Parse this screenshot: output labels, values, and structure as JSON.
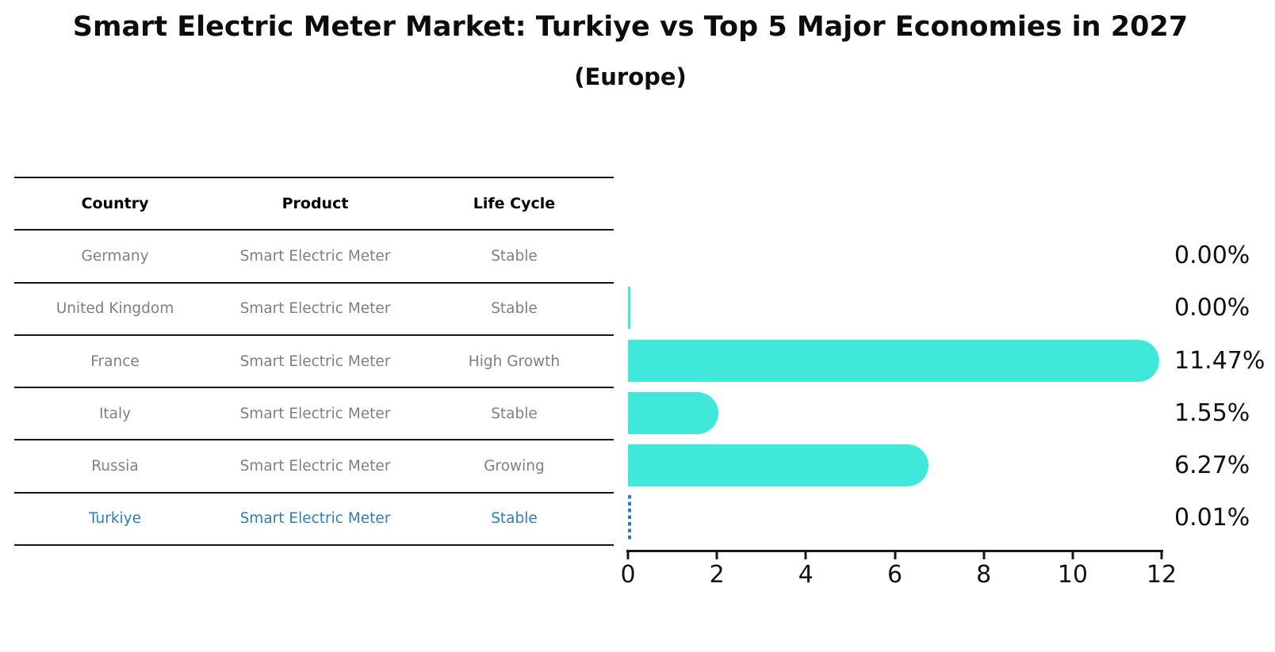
{
  "header": {
    "title": "Smart Electric Meter Market: Turkiye vs Top 5 Major Economies in 2027",
    "subtitle": "(Europe)"
  },
  "table": {
    "headers": [
      "Country",
      "Product",
      "Life Cycle"
    ],
    "rows": [
      {
        "country": "Germany",
        "product": "Smart Electric Meter",
        "life_cycle": "Stable",
        "highlight": false
      },
      {
        "country": "United Kingdom",
        "product": "Smart Electric Meter",
        "life_cycle": "Stable",
        "highlight": false
      },
      {
        "country": "France",
        "product": "Smart Electric Meter",
        "life_cycle": "High Growth",
        "highlight": false
      },
      {
        "country": "Italy",
        "product": "Smart Electric Meter",
        "life_cycle": "Stable",
        "highlight": false
      },
      {
        "country": "Russia",
        "product": "Smart Electric Meter",
        "life_cycle": "Growing",
        "highlight": false
      },
      {
        "country": "Turkiye",
        "product": "Smart Electric Meter",
        "life_cycle": "Stable",
        "highlight": true
      }
    ]
  },
  "chart_data": {
    "type": "bar",
    "orientation": "horizontal",
    "title": "Smart Electric Meter Market: Turkiye vs Top 5 Major Economies in 2027",
    "subtitle": "(Europe)",
    "categories": [
      "Germany",
      "United Kingdom",
      "France",
      "Italy",
      "Russia",
      "Turkiye"
    ],
    "values": [
      0.0,
      0.0,
      11.47,
      1.55,
      6.27,
      0.01
    ],
    "value_labels": [
      "0.00%",
      "0.00%",
      "11.47%",
      "1.55%",
      "6.27%",
      "0.01%"
    ],
    "unit": "%",
    "xlim": [
      0,
      12
    ],
    "xticks": [
      "0",
      "2",
      "4",
      "6",
      "8",
      "10",
      "12"
    ],
    "bar_color": "#40e8dc",
    "highlight_color": "#2e7ebc",
    "bar_styles": [
      "none",
      "sliver",
      "solid",
      "solid",
      "solid",
      "dashed-highlight"
    ],
    "grid": false,
    "legend": false
  }
}
